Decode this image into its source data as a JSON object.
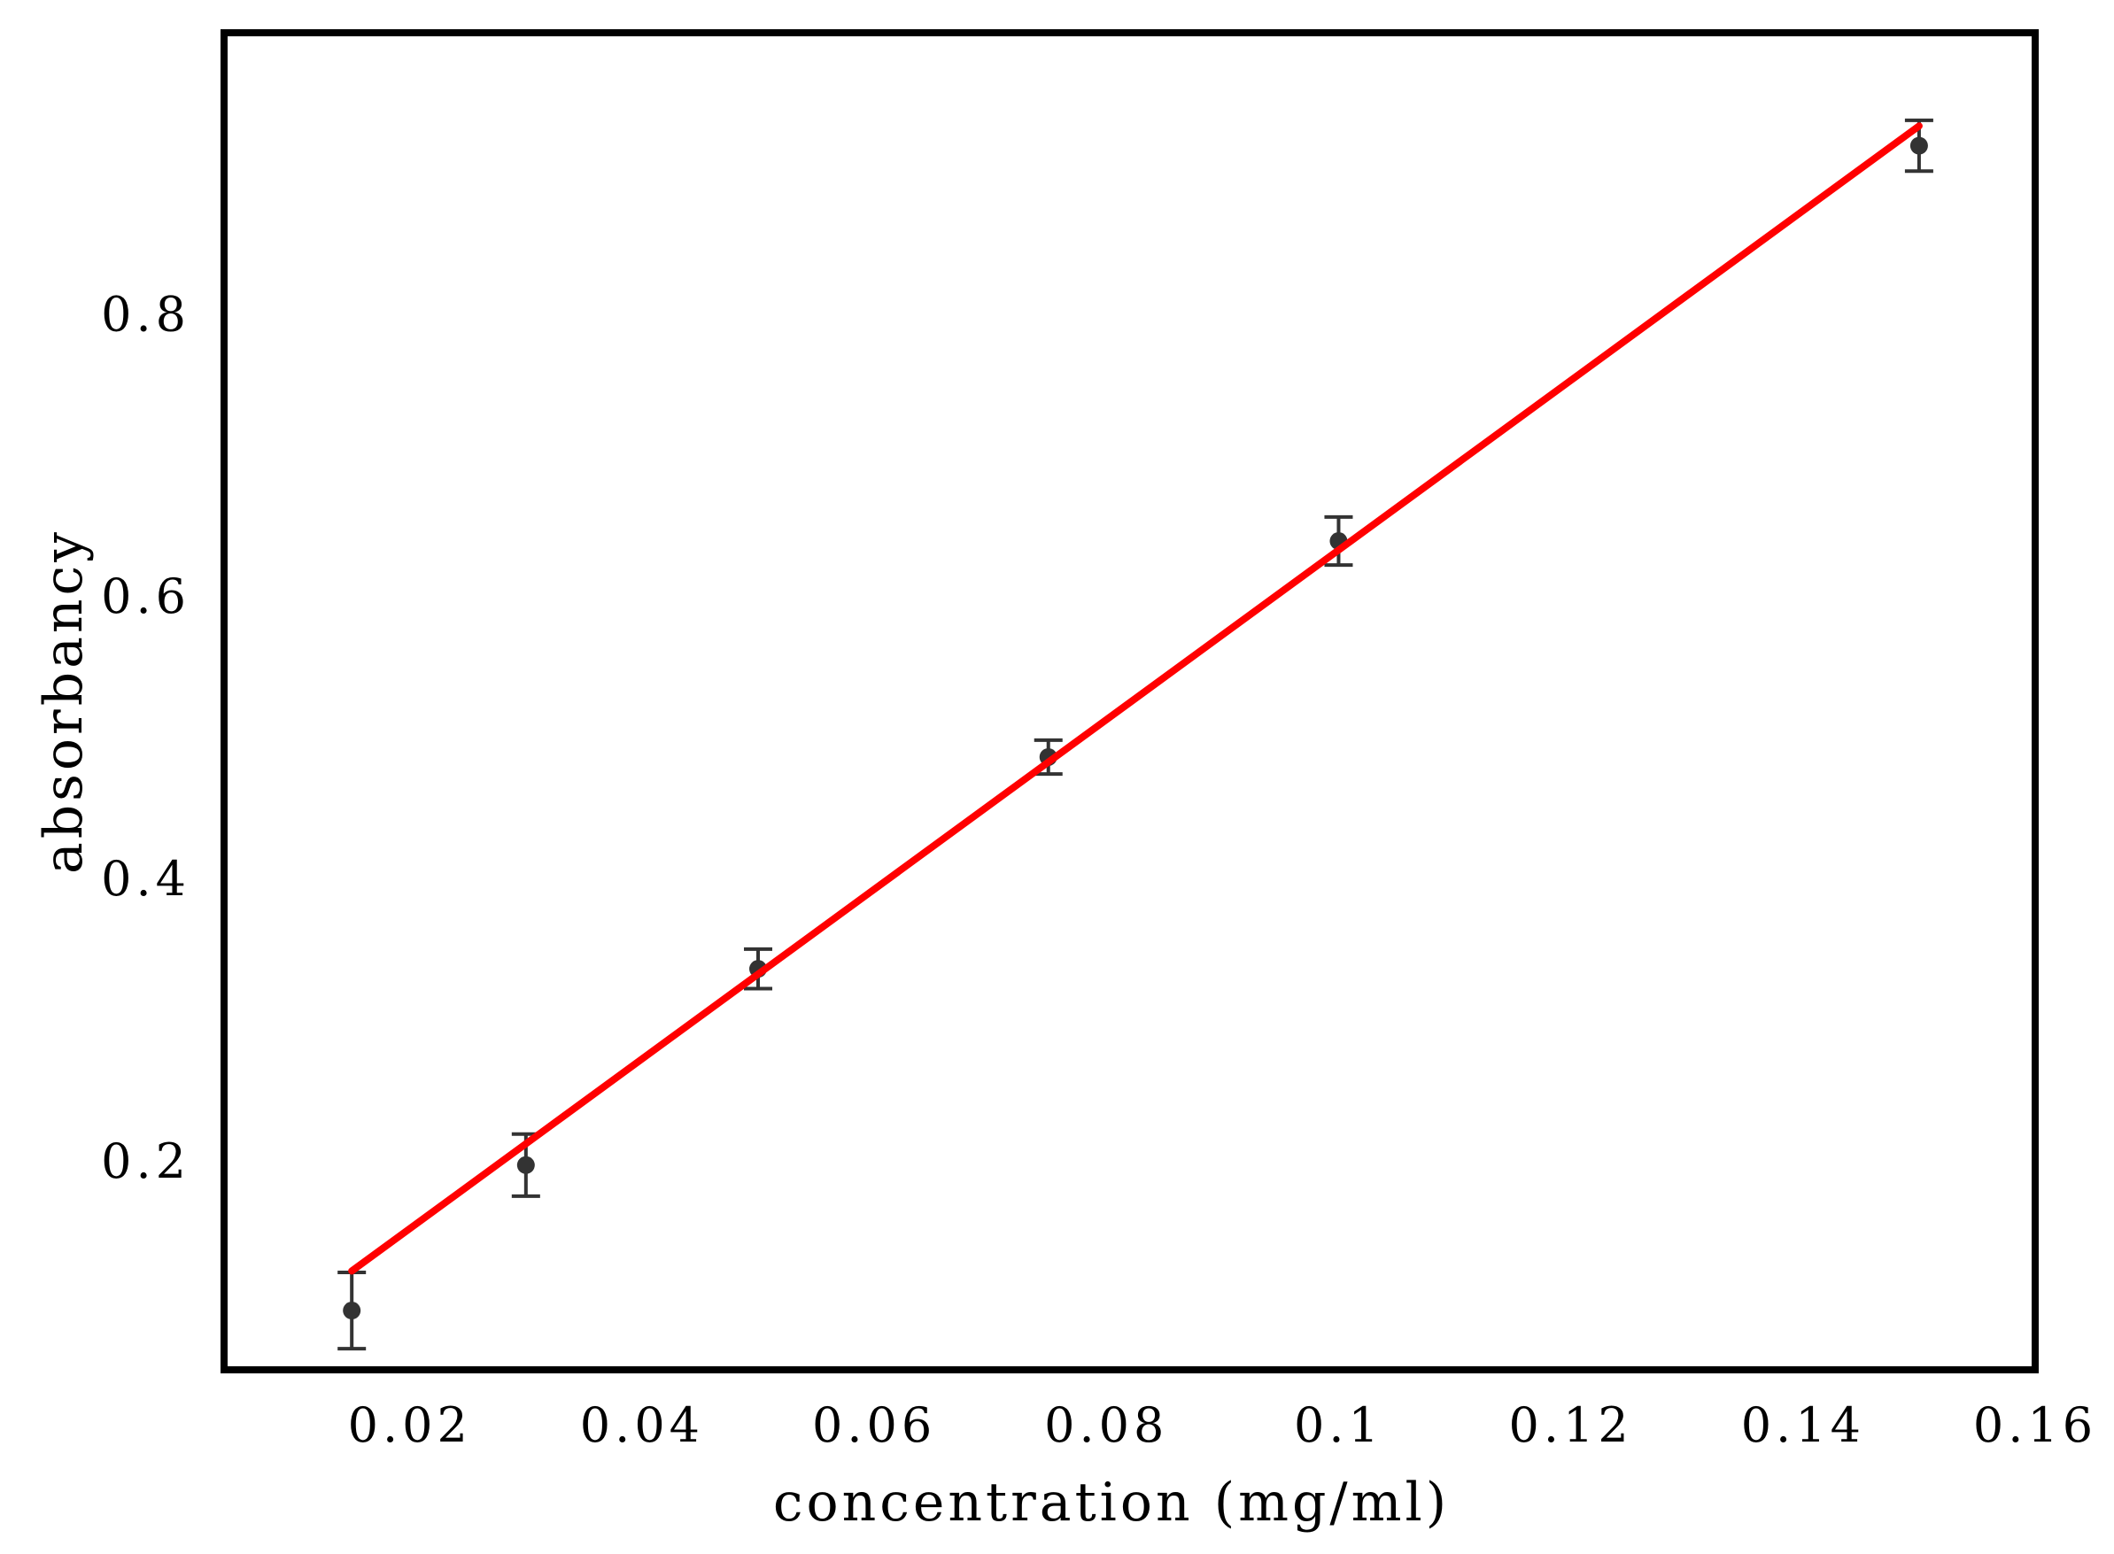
{
  "chart_data": {
    "type": "scatter",
    "xlabel": "concentration (mg/ml)",
    "ylabel": "absorbancy",
    "xlim": [
      0.004,
      0.16
    ],
    "ylim": [
      0.052,
      0.999
    ],
    "x_ticks": [
      0.02,
      0.04,
      0.06,
      0.08,
      0.1,
      0.12,
      0.14,
      0.16
    ],
    "x_tick_labels": [
      "0.02",
      "0.04",
      "0.06",
      "0.08",
      "0.1",
      "0.12",
      "0.14",
      "0.16"
    ],
    "y_ticks": [
      0.2,
      0.4,
      0.6,
      0.8
    ],
    "y_tick_labels": [
      "0.2",
      "0.4",
      "0.6",
      "0.8"
    ],
    "grid": false,
    "legend": "none",
    "series": [
      {
        "kind": "points-with-error-bars",
        "color": "#333333",
        "points": [
          {
            "x": 0.015,
            "y": 0.094,
            "err": 0.027
          },
          {
            "x": 0.03,
            "y": 0.197,
            "err": 0.022
          },
          {
            "x": 0.05,
            "y": 0.336,
            "err": 0.014
          },
          {
            "x": 0.075,
            "y": 0.486,
            "err": 0.012
          },
          {
            "x": 0.1,
            "y": 0.639,
            "err": 0.017
          },
          {
            "x": 0.15,
            "y": 0.919,
            "err": 0.018
          }
        ]
      },
      {
        "kind": "fit-line",
        "color": "#ff0000",
        "x": [
          0.015,
          0.15
        ],
        "y": [
          0.122,
          0.933
        ]
      }
    ]
  }
}
